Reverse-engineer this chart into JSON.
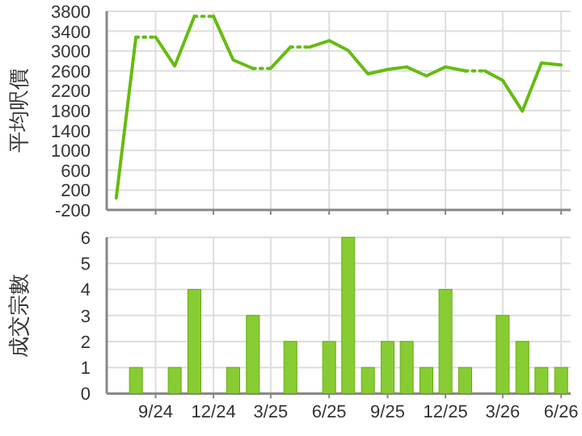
{
  "chart_data": [
    {
      "type": "line",
      "ylabel": "平均呎價",
      "xlim": [
        "2024-06-16",
        "2026-06-16"
      ],
      "ylim": [
        -200,
        3800
      ],
      "yticks": [
        -200,
        200,
        600,
        1000,
        1400,
        1800,
        2200,
        2600,
        3000,
        3400,
        3800
      ],
      "xticks": [
        {
          "value": "2024-09",
          "label": null
        },
        {
          "value": "2024-12",
          "label": null
        },
        {
          "value": "2025-03",
          "label": null
        },
        {
          "value": "2025-06",
          "label": null
        },
        {
          "value": "2025-09",
          "label": null
        },
        {
          "value": "2025-12",
          "label": null
        },
        {
          "value": "2026-03",
          "label": null
        },
        {
          "value": "2026-06",
          "label": null
        }
      ],
      "tick_labels": "y",
      "grid": true,
      "series": [
        {
          "color": "#66bb11",
          "line_style": "solid",
          "x": [
            "2024-07",
            "2024-08"
          ],
          "values": [
            40,
            3280
          ]
        },
        {
          "color": "#66bb11",
          "line_style": "dotted",
          "x": [
            "2024-08",
            "2024-09"
          ],
          "values": [
            3280,
            3280
          ]
        },
        {
          "color": "#66bb11",
          "line_style": "solid",
          "x": [
            "2024-09",
            "2024-10",
            "2024-11"
          ],
          "values": [
            3280,
            2700,
            3700
          ]
        },
        {
          "color": "#66bb11",
          "line_style": "dotted",
          "x": [
            "2024-11",
            "2024-12"
          ],
          "values": [
            3700,
            3700
          ]
        },
        {
          "color": "#66bb11",
          "line_style": "solid",
          "x": [
            "2024-12",
            "2025-01",
            "2025-02"
          ],
          "values": [
            3700,
            2820,
            2650
          ]
        },
        {
          "color": "#66bb11",
          "line_style": "dotted",
          "x": [
            "2025-02",
            "2025-03"
          ],
          "values": [
            2650,
            2650
          ]
        },
        {
          "color": "#66bb11",
          "line_style": "solid",
          "x": [
            "2025-03",
            "2025-04"
          ],
          "values": [
            2650,
            3080
          ]
        },
        {
          "color": "#66bb11",
          "line_style": "dotted",
          "x": [
            "2025-04",
            "2025-05"
          ],
          "values": [
            3080,
            3080
          ]
        },
        {
          "color": "#66bb11",
          "line_style": "solid",
          "x": [
            "2025-05",
            "2025-06",
            "2025-07",
            "2025-08",
            "2025-09",
            "2025-10",
            "2025-11",
            "2025-12",
            "2026-01"
          ],
          "values": [
            3080,
            3210,
            3010,
            2540,
            2630,
            2680,
            2500,
            2680,
            2600
          ]
        },
        {
          "color": "#66bb11",
          "line_style": "dotted",
          "x": [
            "2026-01",
            "2026-02"
          ],
          "values": [
            2600,
            2600
          ]
        },
        {
          "color": "#66bb11",
          "line_style": "solid",
          "x": [
            "2026-02",
            "2026-03",
            "2026-04",
            "2026-05",
            "2026-06"
          ],
          "values": [
            2600,
            2410,
            1790,
            2760,
            2720
          ]
        }
      ]
    },
    {
      "type": "bar",
      "ylabel": "成交宗數",
      "color": "#88cc33",
      "xlim": [
        "2024-06-16",
        "2026-06-16"
      ],
      "ylim": [
        0,
        6
      ],
      "yticks": [
        0,
        1,
        2,
        3,
        4,
        5,
        6
      ],
      "grid": true,
      "xticks": [
        {
          "value": "2024-09",
          "label": "9/24"
        },
        {
          "value": "2024-12",
          "label": "12/24"
        },
        {
          "value": "2025-03",
          "label": "3/25"
        },
        {
          "value": "2025-06",
          "label": "6/25"
        },
        {
          "value": "2025-09",
          "label": "9/25"
        },
        {
          "value": "2025-12",
          "label": "12/25"
        },
        {
          "value": "2026-03",
          "label": "3/26"
        },
        {
          "value": "2026-06",
          "label": "6/26"
        }
      ],
      "x": [
        "2024-07",
        "2024-08",
        "2024-09",
        "2024-10",
        "2024-11",
        "2024-12",
        "2025-01",
        "2025-02",
        "2025-03",
        "2025-04",
        "2025-05",
        "2025-06",
        "2025-07",
        "2025-08",
        "2025-09",
        "2025-10",
        "2025-11",
        "2025-12",
        "2026-01",
        "2026-02",
        "2026-03",
        "2026-04",
        "2026-05",
        "2026-06"
      ],
      "values": [
        0,
        1,
        0,
        1,
        4,
        0,
        1,
        3,
        0,
        2,
        0,
        2,
        6,
        1,
        2,
        2,
        1,
        4,
        1,
        0,
        3,
        2,
        1,
        1
      ]
    }
  ]
}
